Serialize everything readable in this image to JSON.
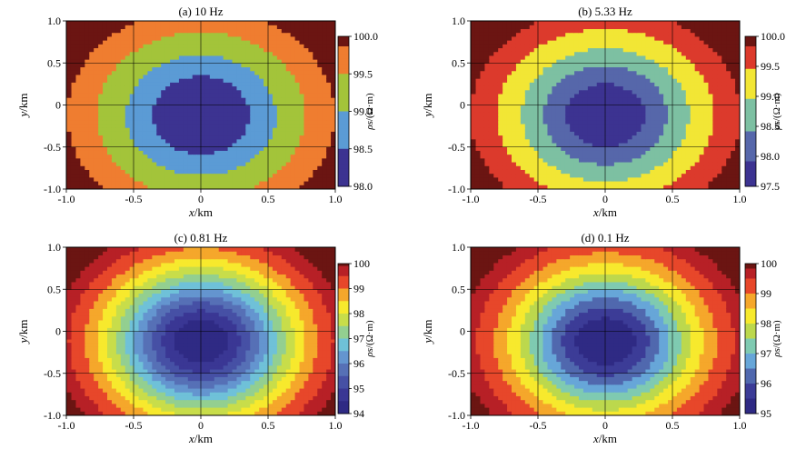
{
  "chart_data": [
    {
      "type": "heatmap",
      "title": "(a) 10 Hz",
      "xlabel": "x/km",
      "ylabel": "y/km",
      "xlim": [
        -1.0,
        1.0
      ],
      "ylim": [
        -1.0,
        1.0
      ],
      "x_ticks": [
        "-1.0",
        "-0.5",
        "0",
        "0.5",
        "1.0"
      ],
      "y_ticks": [
        "1.0",
        "0.5",
        "0",
        "-0.5",
        "-1.0"
      ],
      "grid": true,
      "colorbar": {
        "label": "ρs/(Ω·m)",
        "range": [
          98.0,
          100.0
        ],
        "ticks": [
          "100.0",
          "99.5",
          "99.0",
          "98.5",
          "98.0"
        ],
        "levels": [
          {
            "value": 98.25,
            "color": "#3c3391"
          },
          {
            "value": 98.75,
            "color": "#5b9bd5"
          },
          {
            "value": 99.25,
            "color": "#a3c43a"
          },
          {
            "value": 99.75,
            "color": "#ef7d30"
          },
          {
            "value": 99.95,
            "color": "#6b1512"
          }
        ]
      }
    },
    {
      "type": "heatmap",
      "title": "(b) 5.33 Hz",
      "xlabel": "x/km",
      "ylabel": "y/km",
      "xlim": [
        -1.0,
        1.0
      ],
      "ylim": [
        -1.0,
        1.0
      ],
      "x_ticks": [
        "-1.0",
        "-0.5",
        "0",
        "0.5",
        "1.0"
      ],
      "y_ticks": [
        "1.0",
        "0.5",
        "0",
        "-0.5",
        "-1.0"
      ],
      "grid": true,
      "colorbar": {
        "label": "ρs/(Ω·m)",
        "range": [
          97.5,
          100.0
        ],
        "ticks": [
          "100.0",
          "99.5",
          "99.0",
          "98.5",
          "98.0",
          "97.5"
        ],
        "levels": [
          {
            "value": 97.7,
            "color": "#3c3391"
          },
          {
            "value": 98.15,
            "color": "#5667aa"
          },
          {
            "value": 98.7,
            "color": "#7dc0a2"
          },
          {
            "value": 99.2,
            "color": "#f2e635"
          },
          {
            "value": 99.7,
            "color": "#dc3a2c"
          },
          {
            "value": 99.95,
            "color": "#6b1512"
          }
        ]
      }
    },
    {
      "type": "heatmap",
      "title": "(c) 0.81 Hz",
      "xlabel": "x/km",
      "ylabel": "y/km",
      "xlim": [
        -1.0,
        1.0
      ],
      "ylim": [
        -1.0,
        1.0
      ],
      "x_ticks": [
        "-1.0",
        "-0.5",
        "0",
        "0.5",
        "1.0"
      ],
      "y_ticks": [
        "1.0",
        "0.5",
        "0",
        "-0.5",
        "-1.0"
      ],
      "grid": true,
      "colorbar": {
        "label": "ρs/(Ω·m)",
        "range": [
          94,
          100
        ],
        "ticks": [
          "100",
          "99",
          "98",
          "97",
          "96",
          "95",
          "94"
        ],
        "levels": [
          {
            "value": 94.25,
            "color": "#2f2a84"
          },
          {
            "value": 94.75,
            "color": "#3a3794"
          },
          {
            "value": 95.25,
            "color": "#4650a5"
          },
          {
            "value": 95.75,
            "color": "#5670b6"
          },
          {
            "value": 96.25,
            "color": "#6495cf"
          },
          {
            "value": 96.75,
            "color": "#6fc1d8"
          },
          {
            "value": 97.25,
            "color": "#93cf90"
          },
          {
            "value": 97.75,
            "color": "#c8dd4a"
          },
          {
            "value": 98.25,
            "color": "#f7e92d"
          },
          {
            "value": 98.75,
            "color": "#f5a72b"
          },
          {
            "value": 99.25,
            "color": "#e7472a"
          },
          {
            "value": 99.75,
            "color": "#b72026"
          },
          {
            "value": 99.95,
            "color": "#6b1512"
          }
        ]
      }
    },
    {
      "type": "heatmap",
      "title": "(d) 0.1 Hz",
      "xlabel": "x/km",
      "ylabel": "y/km",
      "xlim": [
        -1.0,
        1.0
      ],
      "ylim": [
        -1.0,
        1.0
      ],
      "x_ticks": [
        "-1.0",
        "-0.5",
        "0",
        "0.5",
        "1.0"
      ],
      "y_ticks": [
        "1.0",
        "0.5",
        "0",
        "-0.5",
        "-1.0"
      ],
      "grid": true,
      "colorbar": {
        "label": "ρs/(Ω·m)",
        "range": [
          95,
          100
        ],
        "ticks": [
          "100",
          "99",
          "98",
          "97",
          "96",
          "95"
        ],
        "levels": [
          {
            "value": 95.25,
            "color": "#2f2a84"
          },
          {
            "value": 95.75,
            "color": "#3c3c97"
          },
          {
            "value": 96.25,
            "color": "#5068ae"
          },
          {
            "value": 96.75,
            "color": "#67a6d8"
          },
          {
            "value": 97.25,
            "color": "#7fcab1"
          },
          {
            "value": 97.75,
            "color": "#bcd84d"
          },
          {
            "value": 98.25,
            "color": "#f7e92d"
          },
          {
            "value": 98.75,
            "color": "#f5a72b"
          },
          {
            "value": 99.25,
            "color": "#e7472a"
          },
          {
            "value": 99.75,
            "color": "#b72026"
          },
          {
            "value": 99.95,
            "color": "#6b1512"
          }
        ]
      }
    }
  ]
}
